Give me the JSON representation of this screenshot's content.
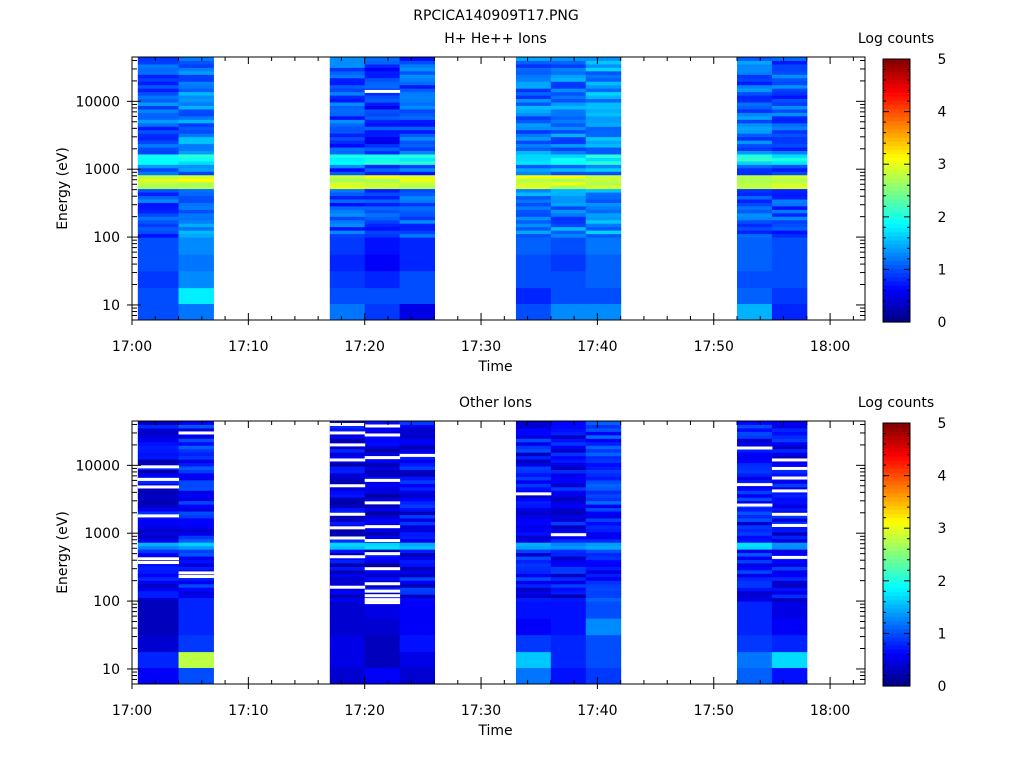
{
  "figure_title": "RPCICA140909T17.PNG",
  "chart_data": [
    {
      "type": "heatmap",
      "title": "H+ He++ Ions",
      "xlabel": "Time",
      "ylabel": "Energy (eV)",
      "x_ticks": [
        "17:00",
        "17:10",
        "17:20",
        "17:30",
        "17:40",
        "17:50",
        "18:00"
      ],
      "y_ticks": [
        "10",
        "100",
        "1000",
        "10000"
      ],
      "y_scale": "log",
      "xlim": [
        "17:00",
        "18:03"
      ],
      "ylim": [
        6,
        45000
      ],
      "colorbar": {
        "label": "Log counts",
        "range": [
          0,
          5
        ],
        "ticks": [
          "0",
          "1",
          "2",
          "3",
          "4",
          "5"
        ],
        "colormap": "jet"
      },
      "time_columns": [
        {
          "start": "17:00.5",
          "end": "17:04",
          "base": 1.05,
          "low_profile": [
            1.0,
            1.0,
            0.9,
            1.0,
            1.0
          ]
        },
        {
          "start": "17:04",
          "end": "17:07",
          "base": 1.25,
          "low_profile": [
            1.2,
            1.8,
            1.3,
            1.2,
            1.3
          ]
        },
        {
          "start": "17:17",
          "end": "17:20",
          "base": 1.0,
          "low_profile": [
            1.2,
            1.0,
            0.9,
            0.8,
            0.9
          ]
        },
        {
          "start": "17:20",
          "end": "17:23",
          "base": 0.85,
          "low_profile": [
            0.9,
            1.0,
            0.8,
            0.6,
            0.7
          ]
        },
        {
          "start": "17:23",
          "end": "17:26",
          "base": 1.0,
          "low_profile": [
            0.5,
            1.0,
            1.0,
            0.8,
            0.8
          ]
        },
        {
          "start": "17:33",
          "end": "17:36",
          "base": 1.2,
          "low_profile": [
            1.0,
            0.8,
            1.0,
            1.0,
            1.1
          ]
        },
        {
          "start": "17:36",
          "end": "17:39",
          "base": 1.2,
          "low_profile": [
            1.3,
            1.0,
            1.0,
            0.9,
            1.0
          ]
        },
        {
          "start": "17:39",
          "end": "17:42",
          "base": 1.35,
          "low_profile": [
            1.3,
            1.0,
            1.1,
            1.1,
            1.2
          ]
        },
        {
          "start": "17:52",
          "end": "17:55",
          "base": 1.1,
          "low_profile": [
            1.5,
            1.1,
            1.0,
            1.1,
            1.1
          ]
        },
        {
          "start": "17:55",
          "end": "17:58",
          "base": 1.0,
          "low_profile": [
            0.8,
            0.9,
            1.0,
            1.0,
            1.0
          ]
        }
      ],
      "features": [
        {
          "energy_range_eV": [
            520,
            800
          ],
          "log_counts": 2.9,
          "note": "main band"
        },
        {
          "energy_range_eV": [
            1200,
            1600
          ],
          "log_counts": 1.9
        }
      ],
      "missing_pixels": [
        {
          "column": 3,
          "energy_eV": 14000
        }
      ]
    },
    {
      "type": "heatmap",
      "title": "Other Ions",
      "xlabel": "Time",
      "ylabel": "Energy (eV)",
      "x_ticks": [
        "17:00",
        "17:10",
        "17:20",
        "17:30",
        "17:40",
        "17:50",
        "18:00"
      ],
      "y_ticks": [
        "10",
        "100",
        "1000",
        "10000"
      ],
      "y_scale": "log",
      "xlim": [
        "17:00",
        "18:03"
      ],
      "ylim": [
        6,
        45000
      ],
      "colorbar": {
        "label": "Log counts",
        "range": [
          0,
          5
        ],
        "ticks": [
          "0",
          "1",
          "2",
          "3",
          "4",
          "5"
        ],
        "colormap": "jet"
      },
      "time_columns": [
        {
          "start": "17:00.5",
          "end": "17:04",
          "base": 0.55,
          "low_profile": [
            0.6,
            0.8,
            0.4,
            0.3,
            0.3
          ]
        },
        {
          "start": "17:04",
          "end": "17:07",
          "base": 0.75,
          "low_profile": [
            1.0,
            2.8,
            0.9,
            0.8,
            0.8
          ]
        },
        {
          "start": "17:17",
          "end": "17:20",
          "base": 0.5,
          "low_profile": [
            0.4,
            0.5,
            0.5,
            0.4,
            0.4
          ]
        },
        {
          "start": "17:20",
          "end": "17:23",
          "base": 0.45,
          "low_profile": [
            0.6,
            0.3,
            0.3,
            0.4,
            0.5
          ]
        },
        {
          "start": "17:23",
          "end": "17:26",
          "base": 0.6,
          "low_profile": [
            0.4,
            0.5,
            0.7,
            0.6,
            0.6
          ]
        },
        {
          "start": "17:33",
          "end": "17:36",
          "base": 0.65,
          "low_profile": [
            1.2,
            1.6,
            0.9,
            0.6,
            0.7
          ]
        },
        {
          "start": "17:36",
          "end": "17:39",
          "base": 0.6,
          "low_profile": [
            0.7,
            0.8,
            0.8,
            0.7,
            0.7
          ]
        },
        {
          "start": "17:39",
          "end": "17:42",
          "base": 0.8,
          "low_profile": [
            0.9,
            1.0,
            1.0,
            1.3,
            1.0
          ]
        },
        {
          "start": "17:52",
          "end": "17:55",
          "base": 0.7,
          "low_profile": [
            1.1,
            1.2,
            0.9,
            0.8,
            0.8
          ]
        },
        {
          "start": "17:55",
          "end": "17:58",
          "base": 0.6,
          "low_profile": [
            0.7,
            1.7,
            0.8,
            0.6,
            0.5
          ]
        }
      ],
      "features": [
        {
          "energy_range_eV": [
            600,
            750
          ],
          "log_counts": 1.5
        }
      ],
      "missing_pixels": [
        {
          "column": 0,
          "energy_eV": 9500
        },
        {
          "column": 0,
          "energy_eV": 6200
        },
        {
          "column": 0,
          "energy_eV": 4800
        },
        {
          "column": 0,
          "energy_eV": 1800
        },
        {
          "column": 0,
          "energy_eV": 420
        },
        {
          "column": 0,
          "energy_eV": 370
        },
        {
          "column": 1,
          "energy_eV": 30000
        },
        {
          "column": 1,
          "energy_eV": 260
        },
        {
          "column": 1,
          "energy_eV": 230
        },
        {
          "column": 2,
          "energy_eV": 40000
        },
        {
          "column": 2,
          "energy_eV": 30000
        },
        {
          "column": 2,
          "energy_eV": 20000
        },
        {
          "column": 2,
          "energy_eV": 12000
        },
        {
          "column": 2,
          "energy_eV": 5000
        },
        {
          "column": 2,
          "energy_eV": 1900
        },
        {
          "column": 2,
          "energy_eV": 1200
        },
        {
          "column": 2,
          "energy_eV": 850
        },
        {
          "column": 2,
          "energy_eV": 450
        },
        {
          "column": 2,
          "energy_eV": 160
        },
        {
          "column": 3,
          "energy_eV": 38000
        },
        {
          "column": 3,
          "energy_eV": 28000
        },
        {
          "column": 3,
          "energy_eV": 13000
        },
        {
          "column": 3,
          "energy_eV": 6000
        },
        {
          "column": 3,
          "energy_eV": 2800
        },
        {
          "column": 3,
          "energy_eV": 1250
        },
        {
          "column": 3,
          "energy_eV": 780
        },
        {
          "column": 3,
          "energy_eV": 500
        },
        {
          "column": 3,
          "energy_eV": 300
        },
        {
          "column": 3,
          "energy_eV": 180
        },
        {
          "column": 3,
          "energy_eV": 140
        },
        {
          "column": 3,
          "energy_eV": 120
        },
        {
          "column": 3,
          "energy_eV": 105
        },
        {
          "column": 3,
          "energy_eV": 95
        },
        {
          "column": 4,
          "energy_eV": 14000
        },
        {
          "column": 5,
          "energy_eV": 3800
        },
        {
          "column": 6,
          "energy_eV": 950
        },
        {
          "column": 8,
          "energy_eV": 18000
        },
        {
          "column": 8,
          "energy_eV": 5200
        },
        {
          "column": 8,
          "energy_eV": 2600
        },
        {
          "column": 9,
          "energy_eV": 12000
        },
        {
          "column": 9,
          "energy_eV": 9000
        },
        {
          "column": 9,
          "energy_eV": 6500
        },
        {
          "column": 9,
          "energy_eV": 4200
        },
        {
          "column": 9,
          "energy_eV": 1900
        },
        {
          "column": 9,
          "energy_eV": 1300
        },
        {
          "column": 9,
          "energy_eV": 440
        }
      ]
    }
  ]
}
